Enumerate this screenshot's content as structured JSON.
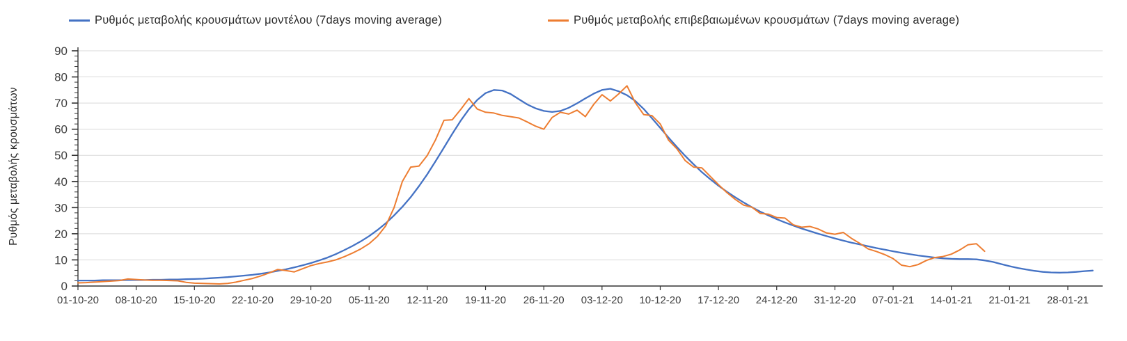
{
  "chart_data": {
    "type": "line",
    "title": "",
    "xlabel": "",
    "ylabel": "Ρυθμός μεταβολής κρουσμάτων",
    "x_unit": "days since 01-10-2020, daily points",
    "x_tick_labels": [
      "01-10-20",
      "08-10-20",
      "15-10-20",
      "22-10-20",
      "29-10-20",
      "05-11-20",
      "12-11-20",
      "19-11-20",
      "26-11-20",
      "03-12-20",
      "10-12-20",
      "17-12-20",
      "24-12-20",
      "31-12-20",
      "07-01-21",
      "14-01-21",
      "21-01-21",
      "28-01-21"
    ],
    "x_tick_interval_days": 7,
    "xlim_days": [
      0,
      123.5
    ],
    "ylim": [
      0,
      90
    ],
    "y_tick_step": 10,
    "y_minor_tick_step": 2,
    "grid": "horizontal-light",
    "legend_position": "top",
    "series": [
      {
        "name": "Ρυθμός μεταβολής κρουσμάτων μοντέλου (7days moving average)",
        "color": "#4472C4",
        "start_day": 0,
        "step_days": 1,
        "values": [
          2.1,
          2.1,
          2.1,
          2.2,
          2.2,
          2.2,
          2.3,
          2.3,
          2.3,
          2.4,
          2.4,
          2.5,
          2.5,
          2.6,
          2.7,
          2.8,
          3.0,
          3.2,
          3.4,
          3.7,
          4.0,
          4.3,
          4.7,
          5.2,
          5.8,
          6.4,
          7.1,
          7.9,
          8.8,
          9.8,
          10.9,
          12.2,
          13.7,
          15.3,
          17.1,
          19.1,
          21.4,
          24.0,
          27.0,
          30.3,
          34.0,
          38.2,
          42.8,
          47.8,
          53.0,
          58.2,
          63.2,
          67.6,
          71.2,
          73.8,
          75.0,
          74.8,
          73.5,
          71.5,
          69.5,
          68.0,
          67.0,
          66.6,
          67.0,
          68.2,
          69.9,
          71.8,
          73.6,
          75.0,
          75.5,
          74.5,
          73.0,
          70.8,
          67.8,
          64.2,
          60.5,
          56.8,
          53.2,
          49.8,
          46.6,
          43.6,
          40.9,
          38.4,
          36.1,
          34.0,
          32.0,
          30.2,
          28.5,
          27.0,
          25.6,
          24.3,
          23.1,
          22.0,
          21.0,
          20.0,
          19.1,
          18.2,
          17.4,
          16.6,
          15.9,
          15.2,
          14.5,
          13.9,
          13.3,
          12.7,
          12.2,
          11.7,
          11.3,
          10.9,
          10.6,
          10.4,
          10.3,
          10.3,
          10.2,
          9.8,
          9.2,
          8.4,
          7.6,
          6.9,
          6.3,
          5.8,
          5.4,
          5.2,
          5.1,
          5.2,
          5.4,
          5.7,
          5.9
        ]
      },
      {
        "name": "Ρυθμός μεταβολής επιβεβαιωμένων κρουσμάτων (7days moving average)",
        "color": "#ED7D31",
        "start_day": 0,
        "step_days": 1,
        "values": [
          1.2,
          1.3,
          1.5,
          1.7,
          1.9,
          2.1,
          2.7,
          2.5,
          2.3,
          2.2,
          2.2,
          2.1,
          2.0,
          1.4,
          1.1,
          1.0,
          0.9,
          0.8,
          1.0,
          1.5,
          2.2,
          2.9,
          3.9,
          5.0,
          6.3,
          5.9,
          5.4,
          6.6,
          7.8,
          8.6,
          9.2,
          10.0,
          11.2,
          12.6,
          14.2,
          16.2,
          19.0,
          23.0,
          30.0,
          40.0,
          45.5,
          45.9,
          50.0,
          56.0,
          63.4,
          63.6,
          67.5,
          71.7,
          67.7,
          66.5,
          66.2,
          65.3,
          64.8,
          64.3,
          62.8,
          61.2,
          60.0,
          64.5,
          66.5,
          65.8,
          67.3,
          64.8,
          69.5,
          73.2,
          70.8,
          73.5,
          76.6,
          70.2,
          65.6,
          65.2,
          62.0,
          55.8,
          52.5,
          48.0,
          45.5,
          45.2,
          42.0,
          38.8,
          35.8,
          33.2,
          31.0,
          30.2,
          27.8,
          27.5,
          26.2,
          26.0,
          23.4,
          22.5,
          22.8,
          21.8,
          20.3,
          19.8,
          20.5,
          18.2,
          16.3,
          14.2,
          13.2,
          12.0,
          10.5,
          8.0,
          7.4,
          8.2,
          9.8,
          10.9,
          11.3,
          12.2,
          13.8,
          15.8,
          16.2,
          13.3
        ]
      }
    ]
  }
}
